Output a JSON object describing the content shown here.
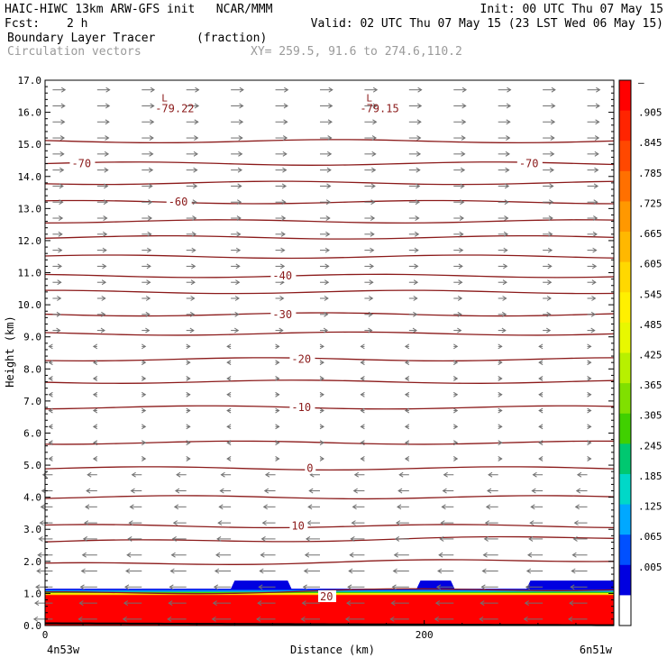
{
  "header": {
    "line1_left": "HAIC-HIWC 13km ARW-GFS init   NCAR/MMM",
    "line1_right": "Init: 00 UTC Thu 07 May 15",
    "fcst_label": "Fcst:",
    "fcst_value": "2 h",
    "valid": "Valid: 02 UTC Thu 07 May 15 (23 LST Wed 06 May 15)",
    "field1_name": "Boundary Layer Tracer",
    "field1_units": "(fraction)",
    "field2_name": "Circulation vectors",
    "xy_text": "XY= 259.5, 91.6 to 274.6,110.2"
  },
  "axes": {
    "ylabel": "Height (km)",
    "xlabel": "Distance (km)",
    "y_ticks": [
      "0.0",
      "1.0",
      "2.0",
      "3.0",
      "4.0",
      "5.0",
      "6.0",
      "7.0",
      "8.0",
      "9.0",
      "10.0",
      "11.0",
      "12.0",
      "13.0",
      "14.0",
      "15.0",
      "16.0",
      "17.0"
    ],
    "x_ticks": [
      "0",
      "200"
    ],
    "left_endpoint": "4n53w",
    "right_endpoint": "6n51w"
  },
  "colorbar": {
    "labels": [
      "–",
      ".905",
      ".845",
      ".785",
      ".725",
      ".665",
      ".605",
      ".545",
      ".485",
      ".425",
      ".365",
      ".305",
      ".245",
      ".185",
      ".125",
      ".065",
      ".005"
    ],
    "colors": [
      "#ff0000",
      "#ff2400",
      "#ff4800",
      "#ff7000",
      "#ff9800",
      "#ffb800",
      "#ffd800",
      "#fff000",
      "#e8f800",
      "#b8f000",
      "#80e000",
      "#40d000",
      "#00c870",
      "#00d8c8",
      "#00a8ff",
      "#0050ff",
      "#0000e0",
      "#ffffff"
    ]
  },
  "chart_data": {
    "type": "contour",
    "title": "Boundary Layer Tracer (fraction); Circulation vectors",
    "xlabel": "Distance (km)",
    "ylabel": "Height (km)",
    "xlim": [
      0,
      300
    ],
    "ylim": [
      0,
      17
    ],
    "temperature_contours_C": [
      {
        "value": "-70",
        "km": 14.4
      },
      {
        "value": "-60",
        "km": 13.2
      },
      {
        "value": "-40",
        "km": 10.9
      },
      {
        "value": "-30",
        "km": 9.7
      },
      {
        "value": "-20",
        "km": 8.3
      },
      {
        "value": "-10",
        "km": 6.8
      },
      {
        "value": "0",
        "km": 4.9
      },
      {
        "value": "10",
        "km": 3.1
      },
      {
        "value": "20",
        "km": 1.0
      }
    ],
    "unlabeled_contour_heights_km": [
      15.1,
      13.8,
      12.6,
      12.1,
      11.5,
      10.4,
      9.1,
      7.6,
      5.7,
      4.0,
      2.6,
      1.9
    ],
    "minima": [
      {
        "label": "L",
        "value": "-79.22",
        "x_km": 60,
        "y_km": 16.4
      },
      {
        "label": "L",
        "value": "-79.15",
        "x_km": 168,
        "y_km": 16.4
      }
    ],
    "tracer_layer": {
      "full_top_km": 0.95,
      "edge_top_km": 1.15,
      "bump_top_km": 1.4
    },
    "wind_regime": [
      {
        "from_km": 0,
        "to_km": 5.0,
        "direction": "westward"
      },
      {
        "from_km": 5.0,
        "to_km": 9.0,
        "direction": "weak/mixed"
      },
      {
        "from_km": 9.0,
        "to_km": 17.0,
        "direction": "eastward"
      }
    ]
  }
}
